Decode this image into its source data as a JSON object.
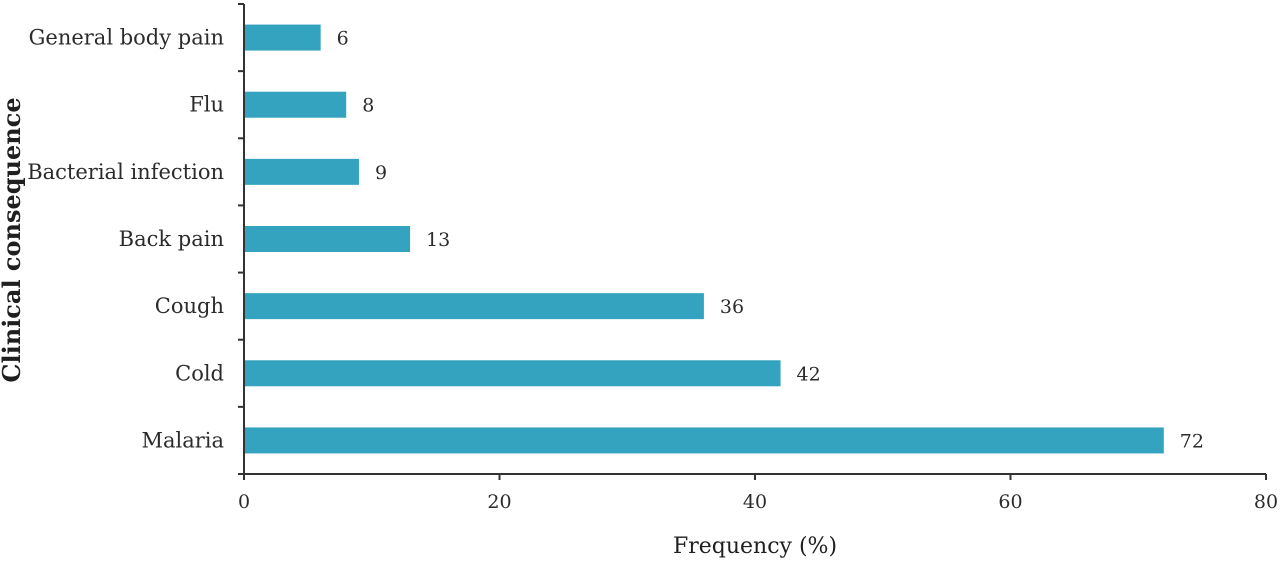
{
  "chart_data": {
    "type": "bar",
    "orientation": "horizontal",
    "categories": [
      "Malaria",
      "Cold",
      "Cough",
      "Back pain",
      "Bacterial infection",
      "Flu",
      "General body pain"
    ],
    "values": [
      72,
      42,
      36,
      13,
      9,
      8,
      6
    ],
    "xlabel": "Frequency (%)",
    "ylabel": "Clinical consequence",
    "xlim": [
      0,
      80
    ],
    "xticks": [
      0,
      20,
      40,
      60,
      80
    ],
    "grid": false,
    "legend": "none",
    "bar_color": "#33a3bf",
    "show_data_labels": true
  }
}
